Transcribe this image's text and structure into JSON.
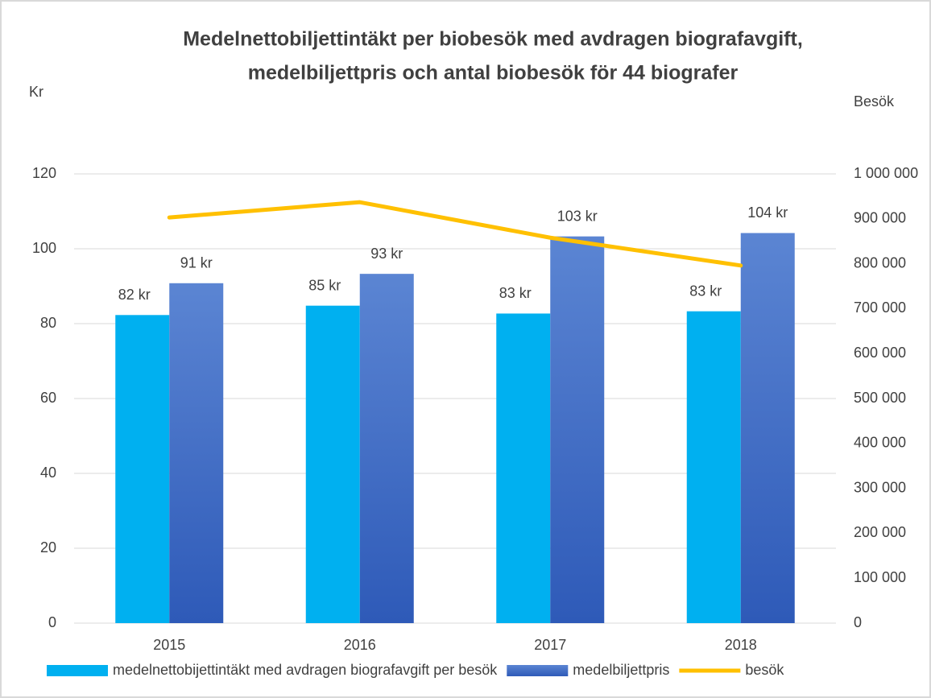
{
  "chart_data": {
    "type": "bar_line",
    "title": [
      "Medelnettobiljettintäkt per biobesök med avdragen biografavgift,",
      "medelbiljettpris och antal biobesök för 44 biografer"
    ],
    "y_label": "Kr",
    "y2_label": "Besök",
    "categories": [
      "2015",
      "2016",
      "2017",
      "2018"
    ],
    "ylim": [
      0,
      120
    ],
    "yticks": [
      0,
      20,
      40,
      60,
      80,
      100,
      120
    ],
    "y2lim": [
      0,
      1000000
    ],
    "y2ticks": [
      {
        "value": 0,
        "label": "0"
      },
      {
        "value": 100000,
        "label": "100 000"
      },
      {
        "value": 200000,
        "label": "200 000"
      },
      {
        "value": 300000,
        "label": "300 000"
      },
      {
        "value": 400000,
        "label": "400 000"
      },
      {
        "value": 500000,
        "label": "500 000"
      },
      {
        "value": 600000,
        "label": "600 000"
      },
      {
        "value": 700000,
        "label": "700 000"
      },
      {
        "value": 800000,
        "label": "800 000"
      },
      {
        "value": 900000,
        "label": "900 000"
      },
      {
        "value": 1000000,
        "label": "1 000 000"
      }
    ],
    "grid": true,
    "legend": "bottom",
    "series": [
      {
        "name": "medelnettobijettintäkt med avdragen biografavgift per besök",
        "type": "bar",
        "color": "#00b0f0",
        "values": [
          82.3,
          84.8,
          82.7,
          83.3
        ],
        "value_labels": [
          "82 kr",
          "85 kr",
          "83 kr",
          "83 kr"
        ]
      },
      {
        "name": "medelbiljettpris",
        "type": "bar",
        "color": "#4472c4",
        "values": [
          90.8,
          93.3,
          103.3,
          104.2
        ],
        "value_labels": [
          "91 kr",
          "93 kr",
          "103 kr",
          "104 kr"
        ]
      },
      {
        "name": "besök",
        "type": "line",
        "axis": "y2",
        "color": "#ffc000",
        "values": [
          903000,
          937000,
          858000,
          796000
        ]
      }
    ]
  }
}
